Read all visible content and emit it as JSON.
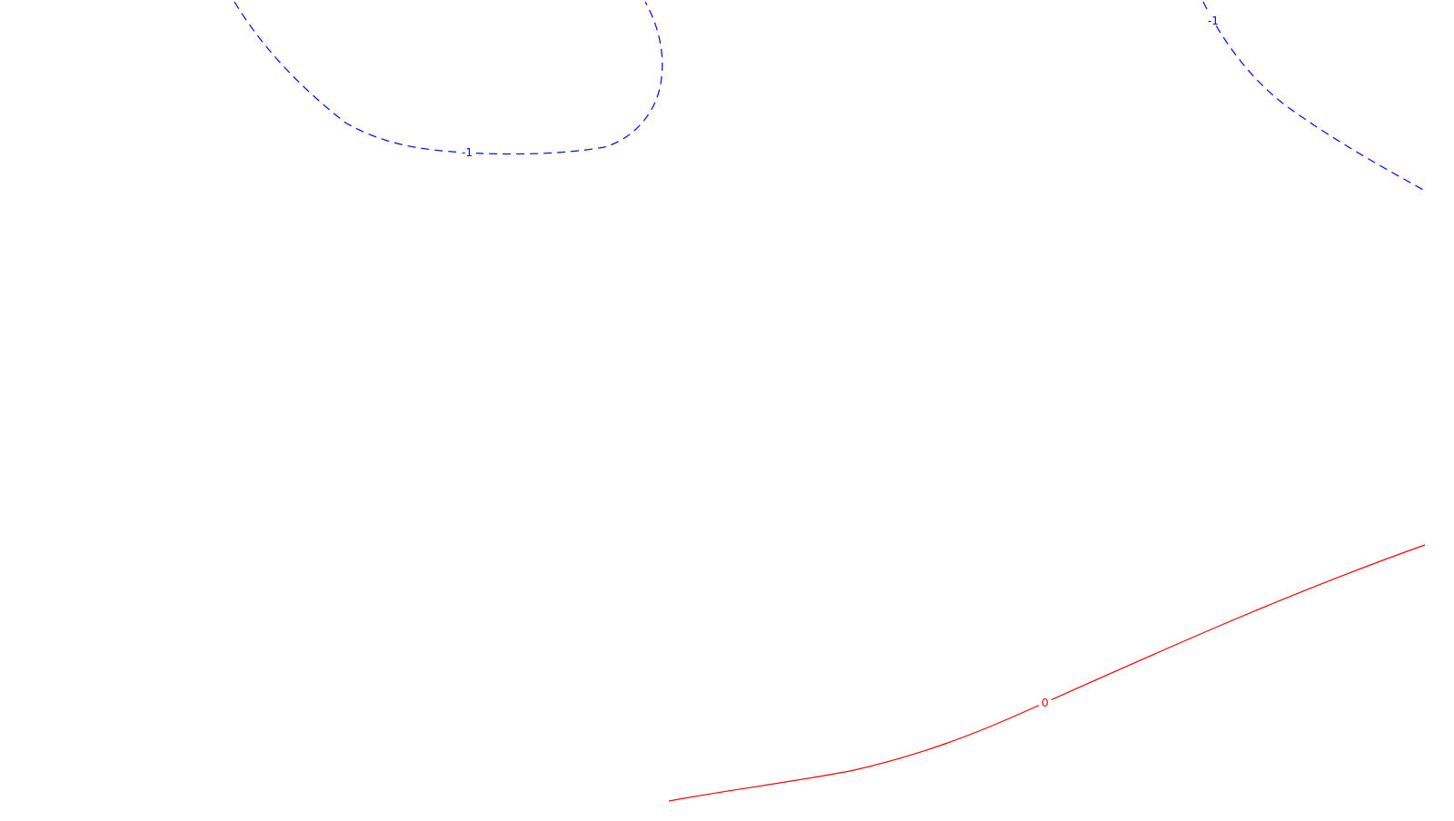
{
  "map": {
    "background_color": "#ffffff",
    "contours": [
      {
        "id": "contour-neg1-left",
        "value_label": "-1",
        "color": "#0000ff",
        "line_style": "dashed"
      },
      {
        "id": "contour-neg1-right",
        "value_label": "-1",
        "color": "#0000ff",
        "line_style": "dashed"
      },
      {
        "id": "contour-zero",
        "value_label": "0",
        "color": "#ff0000",
        "line_style": "solid"
      }
    ]
  }
}
